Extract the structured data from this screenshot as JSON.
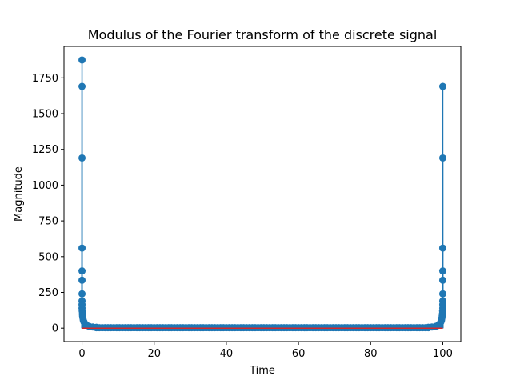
{
  "chart_data": {
    "type": "stem",
    "title": "Modulus of the Fourier transform of the discrete signal",
    "xlabel": "Time",
    "ylabel": "Magnitude",
    "xlim": [
      -5,
      105
    ],
    "ylim": [
      -94,
      1970
    ],
    "xticks": [
      0,
      20,
      40,
      60,
      80,
      100
    ],
    "yticks": [
      0,
      250,
      500,
      750,
      1000,
      1250,
      1500,
      1750
    ],
    "grid": false,
    "series": [
      {
        "color": "#1f77b4",
        "baseline_color": "#d62728",
        "points": [
          {
            "x": 0,
            "y": 1875
          },
          {
            "x": 0,
            "y": 1690
          },
          {
            "x": 0,
            "y": 1190
          },
          {
            "x": 0,
            "y": 560
          },
          {
            "x": 0,
            "y": 400
          },
          {
            "x": 0,
            "y": 335
          },
          {
            "x": 0,
            "y": 240
          },
          {
            "x": 0,
            "y": 190
          },
          {
            "x": 0,
            "y": 165
          },
          {
            "x": 0,
            "y": 140
          },
          {
            "x": 0.05,
            "y": 120
          },
          {
            "x": 0.1,
            "y": 100
          },
          {
            "x": 0.15,
            "y": 85
          },
          {
            "x": 0.25,
            "y": 70
          },
          {
            "x": 0.35,
            "y": 55
          },
          {
            "x": 0.5,
            "y": 45
          },
          {
            "x": 0.7,
            "y": 35
          },
          {
            "x": 1.0,
            "y": 25
          },
          {
            "x": 1.4,
            "y": 18
          },
          {
            "x": 2.0,
            "y": 12
          },
          {
            "x": 3.0,
            "y": 8
          },
          {
            "x": 4.0,
            "y": 6
          },
          {
            "x": 100,
            "y": 1690
          },
          {
            "x": 100,
            "y": 1190
          },
          {
            "x": 100,
            "y": 560
          },
          {
            "x": 100,
            "y": 400
          },
          {
            "x": 100,
            "y": 335
          },
          {
            "x": 100,
            "y": 240
          },
          {
            "x": 100,
            "y": 190
          },
          {
            "x": 100,
            "y": 165
          },
          {
            "x": 100,
            "y": 140
          },
          {
            "x": 99.95,
            "y": 120
          },
          {
            "x": 99.9,
            "y": 100
          },
          {
            "x": 99.85,
            "y": 85
          },
          {
            "x": 99.75,
            "y": 70
          },
          {
            "x": 99.65,
            "y": 55
          },
          {
            "x": 99.5,
            "y": 45
          },
          {
            "x": 99.3,
            "y": 35
          },
          {
            "x": 99.0,
            "y": 25
          },
          {
            "x": 98.6,
            "y": 18
          },
          {
            "x": 98.0,
            "y": 12
          },
          {
            "x": 97.0,
            "y": 8
          },
          {
            "x": 96.0,
            "y": 6
          }
        ],
        "floor": {
          "x_from": 4,
          "x_to": 96,
          "step": 0.8,
          "y": 3
        }
      }
    ]
  }
}
